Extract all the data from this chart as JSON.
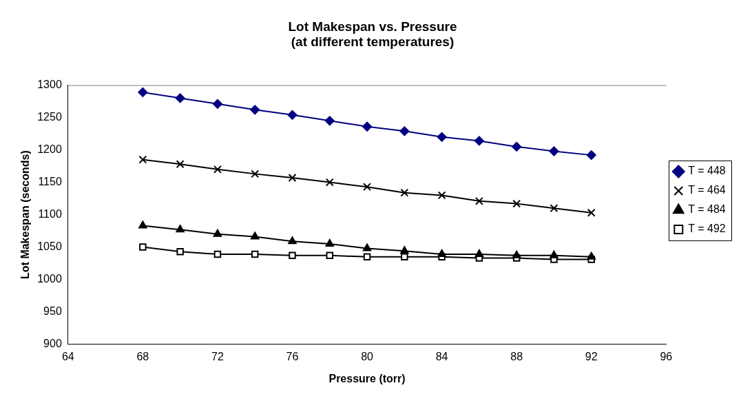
{
  "chart_data": {
    "type": "line",
    "title": [
      "Lot Makespan vs. Pressure",
      "(at different temperatures)"
    ],
    "xlabel": "Pressure (torr)",
    "ylabel": "Lot Makespan (seconds)",
    "x": [
      68,
      70,
      72,
      74,
      76,
      78,
      80,
      82,
      84,
      86,
      88,
      90,
      92
    ],
    "xlim": [
      64,
      96
    ],
    "xticks": [
      64,
      68,
      72,
      76,
      80,
      84,
      88,
      92,
      96
    ],
    "ylim": [
      900,
      1300
    ],
    "yticks": [
      900,
      950,
      1000,
      1050,
      1100,
      1150,
      1200,
      1250,
      1300
    ],
    "grid": false,
    "legend": "right",
    "line_style": "solid",
    "series": [
      {
        "name": "T = 448",
        "color": "#000080",
        "marker": "diamond",
        "values": [
          1289,
          1280,
          1271,
          1262,
          1254,
          1245,
          1236,
          1229,
          1220,
          1214,
          1205,
          1198,
          1192
        ]
      },
      {
        "name": "T = 464",
        "color": "#000000",
        "marker": "cross",
        "values": [
          1185,
          1178,
          1170,
          1163,
          1157,
          1150,
          1143,
          1134,
          1130,
          1121,
          1117,
          1110,
          1103
        ]
      },
      {
        "name": "T = 484",
        "color": "#000000",
        "marker": "triangle",
        "values": [
          1083,
          1077,
          1070,
          1066,
          1059,
          1055,
          1048,
          1044,
          1039,
          1039,
          1037,
          1037,
          1035
        ]
      },
      {
        "name": "T = 492",
        "color": "#000000",
        "marker": "square",
        "values": [
          1050,
          1043,
          1039,
          1039,
          1037,
          1037,
          1035,
          1035,
          1035,
          1033,
          1033,
          1031,
          1031
        ]
      }
    ]
  }
}
